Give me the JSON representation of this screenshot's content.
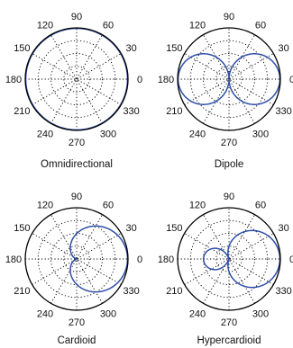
{
  "style": {
    "trace_color": "#2f4fa8",
    "frame_color": "#000000",
    "grid_color": "#000000"
  },
  "grid": {
    "angle_labels": [
      "90",
      "60",
      "30",
      "0",
      "330",
      "300",
      "270",
      "240",
      "210",
      "180",
      "150",
      "120"
    ]
  },
  "chart_data": [
    {
      "type": "polar",
      "pattern": "omnidirectional",
      "title": "Omnidirectional",
      "formula": {
        "a": 1.0,
        "b": 0.0
      },
      "r_range": [
        0,
        1
      ],
      "grid": true,
      "angle_ticks_deg": [
        0,
        30,
        60,
        90,
        120,
        150,
        180,
        210,
        240,
        270,
        300,
        330
      ],
      "radial_rings": 3
    },
    {
      "type": "polar",
      "pattern": "dipole",
      "title": "Dipole",
      "formula": {
        "a": 0.0,
        "b": 1.0
      },
      "r_range": [
        0,
        1
      ],
      "grid": true,
      "angle_ticks_deg": [
        0,
        30,
        60,
        90,
        120,
        150,
        180,
        210,
        240,
        270,
        300,
        330
      ],
      "radial_rings": 3
    },
    {
      "type": "polar",
      "pattern": "cardioid",
      "title": "Cardioid",
      "formula": {
        "a": 0.5,
        "b": 0.5
      },
      "r_range": [
        0,
        1
      ],
      "grid": true,
      "angle_ticks_deg": [
        0,
        30,
        60,
        90,
        120,
        150,
        180,
        210,
        240,
        270,
        300,
        330
      ],
      "radial_rings": 3
    },
    {
      "type": "polar",
      "pattern": "hypercardioid",
      "title": "Hypercardioid",
      "formula": {
        "a": 0.25,
        "b": 0.75
      },
      "r_range": [
        0,
        1
      ],
      "grid": true,
      "angle_ticks_deg": [
        0,
        30,
        60,
        90,
        120,
        150,
        180,
        210,
        240,
        270,
        300,
        330
      ],
      "radial_rings": 3
    }
  ]
}
